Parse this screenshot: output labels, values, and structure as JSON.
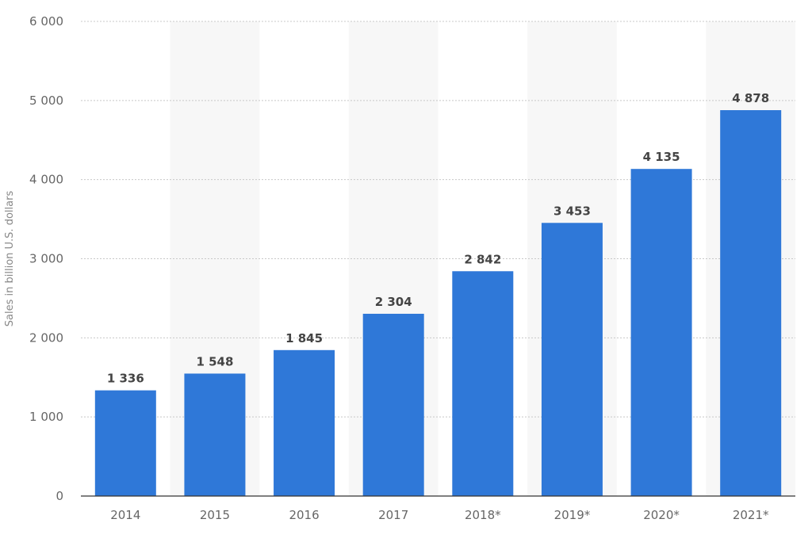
{
  "chart_data": {
    "type": "bar",
    "categories": [
      "2014",
      "2015",
      "2016",
      "2017",
      "2018*",
      "2019*",
      "2020*",
      "2021*"
    ],
    "values": [
      1336,
      1548,
      1845,
      2304,
      2842,
      3453,
      4135,
      4878
    ],
    "value_labels": [
      "1 336",
      "1 548",
      "1 845",
      "2 304",
      "2 842",
      "3 453",
      "4 135",
      "4 878"
    ],
    "ylabel": "Sales in billion U.S. dollars",
    "xlabel": "",
    "ylim": [
      0,
      6000
    ],
    "yticks": [
      0,
      1000,
      2000,
      3000,
      4000,
      5000,
      6000
    ],
    "ytick_labels": [
      "0",
      "1 000",
      "2 000",
      "3 000",
      "4 000",
      "5 000",
      "6 000"
    ],
    "grid": true,
    "alternating_column_shading": true,
    "bar_color": "#2f78d8",
    "shade_color": "#f7f7f7"
  }
}
